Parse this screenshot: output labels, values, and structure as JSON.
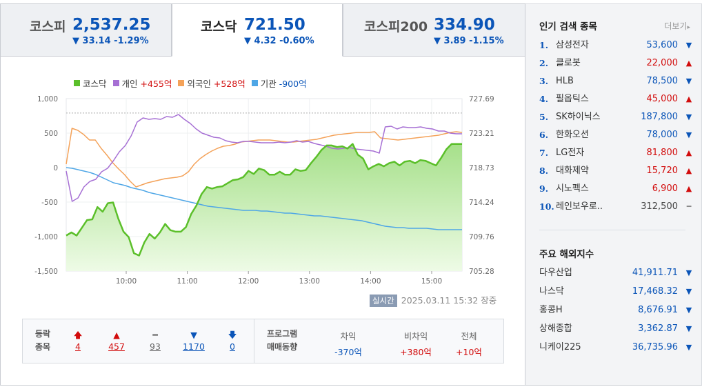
{
  "tabs": [
    {
      "name": "코스피",
      "value": "2,537.25",
      "change": "▼ 33.14 -1.29%"
    },
    {
      "name": "코스닥",
      "value": "721.50",
      "change": "▼ 4.32 -0.60%"
    },
    {
      "name": "코스피200",
      "value": "334.90",
      "change": "▼ 3.89 -1.15%"
    }
  ],
  "legend": {
    "kosdaq": "코스닥",
    "individual": "개인",
    "individual_value": "+455억",
    "foreign": "외국인",
    "foreign_value": "+528억",
    "institution": "기관",
    "institution_value": "-900억"
  },
  "colors": {
    "kosdaq": "#5bbf2a",
    "individual": "#a66fd4",
    "foreign": "#f4a259",
    "institution": "#4ea6e6",
    "up": "#d20c0c",
    "down": "#0b55b8"
  },
  "chart_data": {
    "type": "line",
    "left_axis_ticks": [
      "1,000",
      "500",
      "0",
      "-500",
      "-1,000",
      "-1,500"
    ],
    "right_axis_ticks": [
      "727.69",
      "723.21",
      "718.73",
      "714.24",
      "709.76",
      "705.28"
    ],
    "x_ticks": [
      "10:00",
      "11:00",
      "12:00",
      "13:00",
      "14:00",
      "15:00"
    ],
    "left_ylim": [
      -1500,
      1000
    ],
    "right_ylim": [
      705.28,
      727.69
    ],
    "prev_close_index": 725.82,
    "series": [
      {
        "name": "코스닥",
        "axis": "right",
        "type": "area",
        "values": [
          709.9,
          710.3,
          709.9,
          710.9,
          711.9,
          712.0,
          713.6,
          713.0,
          714.1,
          714.2,
          712.1,
          710.4,
          709.7,
          707.6,
          707.3,
          709.0,
          710.1,
          709.5,
          710.3,
          711.4,
          710.6,
          710.4,
          710.4,
          711.0,
          712.7,
          713.8,
          715.3,
          716.2,
          716.0,
          716.2,
          716.3,
          716.7,
          717.1,
          717.2,
          717.5,
          718.3,
          717.9,
          718.6,
          718.4,
          717.8,
          717.8,
          718.2,
          717.8,
          717.8,
          718.5,
          718.3,
          718.4,
          719.3,
          720.1,
          721.0,
          721.6,
          721.6,
          721.4,
          721.5,
          721.2,
          721.8,
          720.4,
          719.9,
          718.5,
          718.9,
          719.2,
          718.9,
          719.3,
          719.5,
          719.0,
          719.5,
          719.6,
          719.3,
          719.7,
          719.6,
          719.3,
          719.0,
          720.0,
          721.1,
          721.8,
          721.8,
          721.8
        ]
      },
      {
        "name": "개인",
        "axis": "left",
        "values": [
          -50,
          -490,
          -440,
          -280,
          -200,
          -170,
          -60,
          -10,
          100,
          230,
          320,
          460,
          660,
          720,
          700,
          710,
          700,
          740,
          730,
          770,
          700,
          640,
          560,
          500,
          470,
          440,
          430,
          390,
          370,
          360,
          380,
          380,
          370,
          360,
          360,
          360,
          370,
          360,
          370,
          390,
          370,
          380,
          350,
          330,
          310,
          280,
          270,
          280,
          290,
          270,
          260,
          250,
          240,
          210,
          590,
          600,
          560,
          590,
          580,
          580,
          590,
          570,
          560,
          530,
          530,
          500,
          490,
          490
        ]
      },
      {
        "name": "외국인",
        "axis": "left",
        "values": [
          50,
          570,
          540,
          480,
          400,
          400,
          280,
          180,
          70,
          -20,
          -100,
          -200,
          -280,
          -250,
          -220,
          -200,
          -180,
          -160,
          -150,
          -140,
          -120,
          -60,
          50,
          130,
          190,
          240,
          280,
          310,
          320,
          340,
          370,
          380,
          390,
          400,
          400,
          400,
          390,
          380,
          370,
          370,
          380,
          390,
          400,
          410,
          430,
          450,
          470,
          480,
          490,
          500,
          510,
          510,
          510,
          520,
          430,
          420,
          410,
          400,
          410,
          420,
          430,
          440,
          450,
          460,
          470,
          490,
          510,
          520,
          510
        ]
      },
      {
        "name": "기관",
        "axis": "left",
        "values": [
          0,
          -10,
          -30,
          -50,
          -70,
          -100,
          -140,
          -180,
          -220,
          -240,
          -260,
          -290,
          -310,
          -330,
          -360,
          -380,
          -400,
          -420,
          -440,
          -460,
          -480,
          -500,
          -520,
          -540,
          -560,
          -570,
          -580,
          -590,
          -600,
          -610,
          -620,
          -620,
          -620,
          -630,
          -630,
          -640,
          -650,
          -660,
          -660,
          -670,
          -680,
          -690,
          -700,
          -700,
          -710,
          -720,
          -730,
          -740,
          -750,
          -760,
          -770,
          -790,
          -810,
          -830,
          -850,
          -860,
          -870,
          -870,
          -880,
          -880,
          -880,
          -880,
          -890,
          -900,
          -900,
          -900,
          -900,
          -900
        ]
      }
    ]
  },
  "timestamp_badge": "실시간",
  "timestamp": "2025.03.11 15:32 장중",
  "stats": {
    "label1": "등락",
    "label2": "종목",
    "items": [
      {
        "icon": "🡅",
        "count": "4",
        "color": "#d20c0c"
      },
      {
        "icon": "▲",
        "count": "457",
        "color": "#d20c0c"
      },
      {
        "icon": "━",
        "count": "93",
        "color": "#666"
      },
      {
        "icon": "▼",
        "count": "1170",
        "color": "#0b55b8"
      },
      {
        "icon": "🡇",
        "count": "0",
        "color": "#0b55b8"
      }
    ],
    "program_label1": "프로그램",
    "program_label2": "매매동향",
    "program": [
      {
        "header": "차익",
        "value": "-370억"
      },
      {
        "header": "비차익",
        "value": "+380억"
      },
      {
        "header": "전체",
        "value": "+10억"
      }
    ]
  },
  "popular": {
    "title": "인기 검색 종목",
    "more": "더보기",
    "items": [
      {
        "rank": "1.",
        "name": "삼성전자",
        "price": "53,600",
        "dir": "down"
      },
      {
        "rank": "2.",
        "name": "클로봇",
        "price": "22,000",
        "dir": "up"
      },
      {
        "rank": "3.",
        "name": "HLB",
        "price": "78,500",
        "dir": "down"
      },
      {
        "rank": "4.",
        "name": "필옵틱스",
        "price": "45,000",
        "dir": "up"
      },
      {
        "rank": "5.",
        "name": "SK하이닉스",
        "price": "187,800",
        "dir": "down"
      },
      {
        "rank": "6.",
        "name": "한화오션",
        "price": "78,000",
        "dir": "down"
      },
      {
        "rank": "7.",
        "name": "LG전자",
        "price": "81,800",
        "dir": "up"
      },
      {
        "rank": "8.",
        "name": "대화제약",
        "price": "15,720",
        "dir": "up"
      },
      {
        "rank": "9.",
        "name": "시노펙스",
        "price": "6,900",
        "dir": "up"
      },
      {
        "rank": "10.",
        "name": "레인보우로..",
        "price": "312,500",
        "dir": "flat"
      }
    ]
  },
  "world": {
    "title": "주요 해외지수",
    "items": [
      {
        "name": "다우산업",
        "price": "41,911.71",
        "dir": "down"
      },
      {
        "name": "나스닥",
        "price": "17,468.32",
        "dir": "down"
      },
      {
        "name": "홍콩H",
        "price": "8,676.91",
        "dir": "down"
      },
      {
        "name": "상해종합",
        "price": "3,362.87",
        "dir": "down"
      },
      {
        "name": "니케이225",
        "price": "36,735.96",
        "dir": "down"
      }
    ]
  }
}
